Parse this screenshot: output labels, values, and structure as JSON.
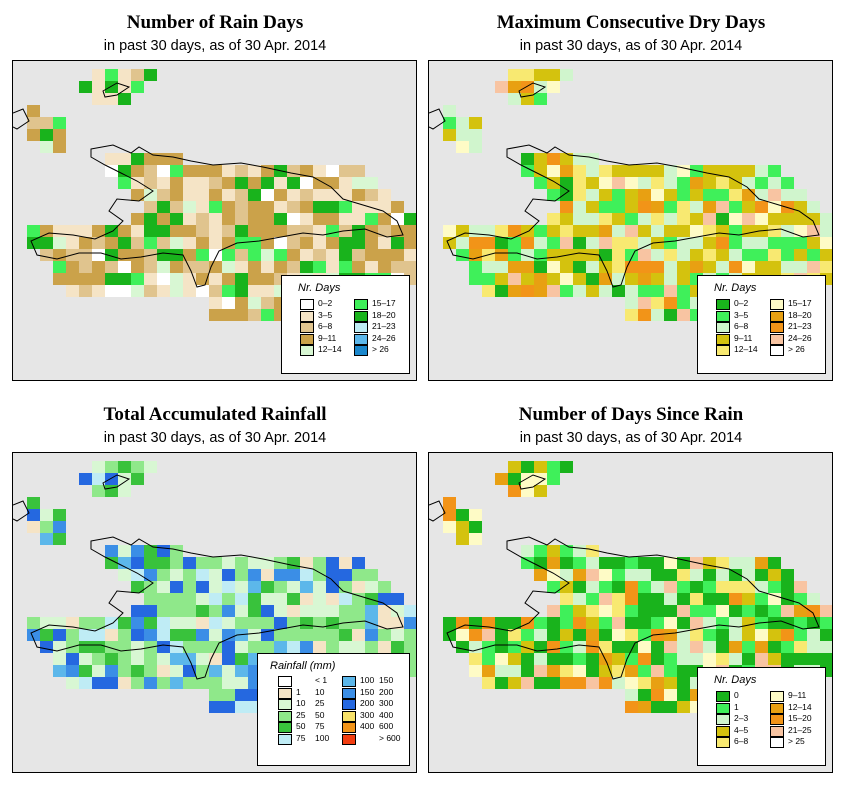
{
  "panels": [
    {
      "title": "Number of Rain Days",
      "subtitle": "in past 30 days, as of  30 Apr. 2014",
      "legend_title": "Nr. Days",
      "legend": [
        {
          "label": "0–2",
          "color": "#ffffff"
        },
        {
          "label": "3–5",
          "color": "#f5e4c6"
        },
        {
          "label": "6–8",
          "color": "#e0c48e"
        },
        {
          "label": "9–11",
          "color": "#cba24a"
        },
        {
          "label": "12–14",
          "color": "#d8f7d3"
        },
        {
          "label": "15–17",
          "color": "#3ff05a"
        },
        {
          "label": "18–20",
          "color": "#19b31c"
        },
        {
          "label": "21–23",
          "color": "#bfecf5"
        },
        {
          "label": "24–26",
          "color": "#5cb7ea"
        },
        {
          "label": "> 26",
          "color": "#1a87cc"
        }
      ]
    },
    {
      "title": "Maximum Consecutive Dry Days",
      "subtitle": "in past 30 days, as of  30 Apr. 2014",
      "legend_title": "Nr. Days",
      "legend": [
        {
          "label": "0–2",
          "color": "#19b31c"
        },
        {
          "label": "3–5",
          "color": "#3ff05a"
        },
        {
          "label": "6–8",
          "color": "#d0f5cd"
        },
        {
          "label": "9–11",
          "color": "#d4c20e"
        },
        {
          "label": "12–14",
          "color": "#f8e971"
        },
        {
          "label": "15–17",
          "color": "#fefbc6"
        },
        {
          "label": "18–20",
          "color": "#e8a012"
        },
        {
          "label": "21–23",
          "color": "#f29418"
        },
        {
          "label": "24–26",
          "color": "#f8c4a2"
        },
        {
          "label": "> 26",
          "color": "#ffffff"
        }
      ]
    },
    {
      "title": "Total Accumulated Rainfall",
      "subtitle": "in past 30 days, as of  30 Apr. 2014",
      "legend_title": "Rainfall (mm)",
      "legend": [
        {
          "lo": "",
          "hi": "< 1",
          "color": "#ffffff"
        },
        {
          "lo": "1",
          "hi": "10",
          "color": "#f5e4c6"
        },
        {
          "lo": "10",
          "hi": "25",
          "color": "#d8f7d3"
        },
        {
          "lo": "25",
          "hi": "50",
          "color": "#8fe88a"
        },
        {
          "lo": "50",
          "hi": "75",
          "color": "#39c23c"
        },
        {
          "lo": "75",
          "hi": "100",
          "color": "#bfecf5"
        },
        {
          "lo": "100",
          "hi": "150",
          "color": "#5cb7ea"
        },
        {
          "lo": "150",
          "hi": "200",
          "color": "#3b8ee6"
        },
        {
          "lo": "200",
          "hi": "300",
          "color": "#2568e0"
        },
        {
          "lo": "300",
          "hi": "400",
          "color": "#f8e26a"
        },
        {
          "lo": "400",
          "hi": "600",
          "color": "#f29418"
        },
        {
          "lo": "",
          "hi": "> 600",
          "color": "#f23d10"
        }
      ]
    },
    {
      "title": "Number of Days Since Rain",
      "subtitle": "in past 30 days, as of  30 Apr. 2014",
      "legend_title": "Nr. Days",
      "legend": [
        {
          "label": "0",
          "color": "#19b31c"
        },
        {
          "label": "1",
          "color": "#3ff05a"
        },
        {
          "label": "2–3",
          "color": "#d0f5cd"
        },
        {
          "label": "4–5",
          "color": "#d4c20e"
        },
        {
          "label": "6–8",
          "color": "#f8e971"
        },
        {
          "label": "9–11",
          "color": "#fefbc6"
        },
        {
          "label": "12–14",
          "color": "#e8a012"
        },
        {
          "label": "15–20",
          "color": "#f29418"
        },
        {
          "label": "21–25",
          "color": "#f8c4a2"
        },
        {
          "label": "> 25",
          "color": "#ffffff"
        }
      ]
    }
  ],
  "colors": {
    "frame_background": "#e6e6e6",
    "coastline": "#000000"
  }
}
